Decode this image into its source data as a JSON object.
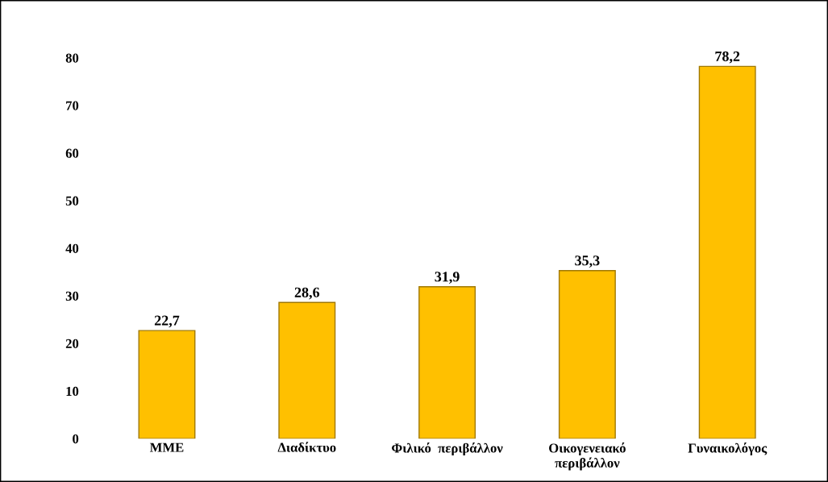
{
  "chart_data": {
    "type": "bar",
    "categories": [
      "ΜΜΕ",
      "Διαδίκτυο",
      "Φιλικό  περιβάλλον",
      "Οικογενειακό\nπεριβάλλον",
      "Γυναικολόγος"
    ],
    "values": [
      22.7,
      28.6,
      31.9,
      35.3,
      78.2
    ],
    "value_labels": [
      "22,7",
      "28,6",
      "31,9",
      "35,3",
      "78,2"
    ],
    "color": "#ffc000",
    "ylim": [
      0,
      80
    ],
    "yticks": [
      0,
      10,
      20,
      30,
      40,
      50,
      60,
      70,
      80
    ],
    "grid": false,
    "legend": false
  }
}
